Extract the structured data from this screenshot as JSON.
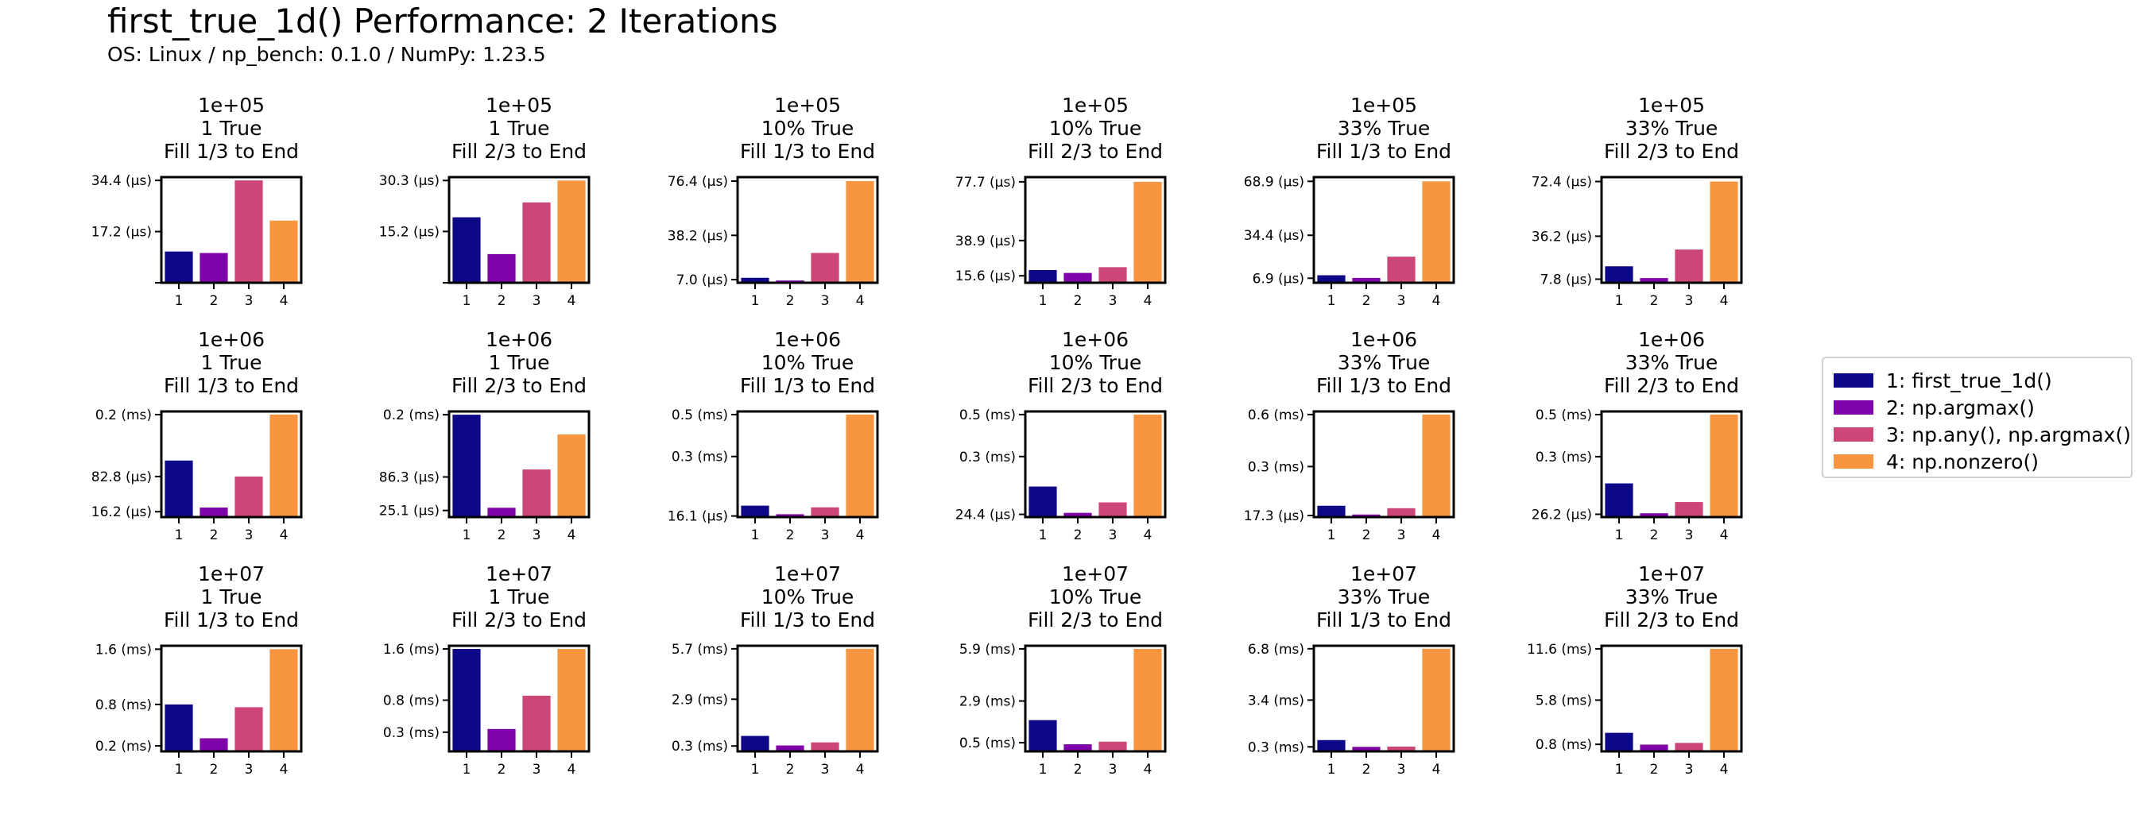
{
  "title": "first_true_1d() Performance: 2 Iterations",
  "subtitle": "OS: Linux / np_bench: 0.1.0 / NumPy: 1.23.5",
  "colors": [
    "#0d0887",
    "#7e03a8",
    "#cc4778",
    "#f89540"
  ],
  "legend": [
    {
      "label": "1: first_true_1d()"
    },
    {
      "label": "2: np.argmax()"
    },
    {
      "label": "3: np.any(), np.argmax()"
    },
    {
      "label": "4: np.nonzero()"
    }
  ],
  "chart_data": [
    {
      "type": "bar",
      "title": [
        "1e+05",
        "1 True",
        "Fill 1/3 to End"
      ],
      "categories": [
        "1",
        "2",
        "3",
        "4"
      ],
      "unit": "µs",
      "values": [
        10.5,
        10.0,
        34.4,
        20.9
      ],
      "ylim": [
        0,
        35.5
      ],
      "yticks": [
        {
          "value": 17.2,
          "label": "17.2 (µs)"
        },
        {
          "value": 34.4,
          "label": "34.4 (µs)"
        }
      ],
      "base_tick": true
    },
    {
      "type": "bar",
      "title": [
        "1e+05",
        "1 True",
        "Fill 2/3 to End"
      ],
      "categories": [
        "1",
        "2",
        "3",
        "4"
      ],
      "unit": "µs",
      "values": [
        19.4,
        8.5,
        23.8,
        30.3
      ],
      "ylim": [
        0,
        31.3
      ],
      "yticks": [
        {
          "value": 15.2,
          "label": "15.2 (µs)"
        },
        {
          "value": 30.3,
          "label": "30.3 (µs)"
        }
      ],
      "base_tick": true
    },
    {
      "type": "bar",
      "title": [
        "1e+05",
        "10% True",
        "Fill 1/3 to End"
      ],
      "categories": [
        "1",
        "2",
        "3",
        "4"
      ],
      "unit": "µs",
      "values": [
        8.3,
        6.4,
        25.8,
        76.4
      ],
      "ylim": [
        4.8,
        79.2
      ],
      "yticks": [
        {
          "value": 7.0,
          "label": "7.0 (µs)"
        },
        {
          "value": 38.2,
          "label": "38.2 (µs)"
        },
        {
          "value": 76.4,
          "label": "76.4 (µs)"
        }
      ]
    },
    {
      "type": "bar",
      "title": [
        "1e+05",
        "10% True",
        "Fill 2/3 to End"
      ],
      "categories": [
        "1",
        "2",
        "3",
        "4"
      ],
      "unit": "µs",
      "values": [
        19.4,
        17.5,
        21.3,
        77.7
      ],
      "ylim": [
        11.0,
        80.8
      ],
      "yticks": [
        {
          "value": 15.6,
          "label": "15.6 (µs)"
        },
        {
          "value": 38.9,
          "label": "38.9 (µs)"
        },
        {
          "value": 77.7,
          "label": "77.7 (µs)"
        }
      ]
    },
    {
      "type": "bar",
      "title": [
        "1e+05",
        "33% True",
        "Fill 1/3 to End"
      ],
      "categories": [
        "1",
        "2",
        "3",
        "4"
      ],
      "unit": "µs",
      "values": [
        8.8,
        7.1,
        20.7,
        68.9
      ],
      "ylim": [
        4.0,
        71.6
      ],
      "yticks": [
        {
          "value": 6.9,
          "label": "6.9 (µs)"
        },
        {
          "value": 34.4,
          "label": "34.4 (µs)"
        },
        {
          "value": 68.9,
          "label": "68.9 (µs)"
        }
      ]
    },
    {
      "type": "bar",
      "title": [
        "1e+05",
        "33% True",
        "Fill 2/3 to End"
      ],
      "categories": [
        "1",
        "2",
        "3",
        "4"
      ],
      "unit": "µs",
      "values": [
        16.3,
        8.5,
        27.4,
        72.4
      ],
      "ylim": [
        5.4,
        75.3
      ],
      "yticks": [
        {
          "value": 7.8,
          "label": "7.8 (µs)"
        },
        {
          "value": 36.2,
          "label": "36.2 (µs)"
        },
        {
          "value": 72.4,
          "label": "72.4 (µs)"
        }
      ]
    },
    {
      "type": "bar",
      "title": [
        "1e+06",
        "1 True",
        "Fill 1/3 to End"
      ],
      "categories": [
        "1",
        "2",
        "3",
        "4"
      ],
      "unit": "µs",
      "values": [
        113,
        24,
        82.8,
        200
      ],
      "ylim": [
        6,
        206
      ],
      "yticks": [
        {
          "value": 16.2,
          "label": "16.2 (µs)"
        },
        {
          "value": 82.8,
          "label": "82.8 (µs)"
        },
        {
          "value": 200,
          "label": "0.2 (ms)"
        }
      ]
    },
    {
      "type": "bar",
      "title": [
        "1e+06",
        "1 True",
        "Fill 2/3 to End"
      ],
      "categories": [
        "1",
        "2",
        "3",
        "4"
      ],
      "unit": "µs",
      "values": [
        200,
        30,
        100,
        164
      ],
      "ylim": [
        13,
        206
      ],
      "yticks": [
        {
          "value": 25.1,
          "label": "25.1 (µs)"
        },
        {
          "value": 86.3,
          "label": "86.3 (µs)"
        },
        {
          "value": 200,
          "label": "0.2 (ms)"
        }
      ]
    },
    {
      "type": "bar",
      "title": [
        "1e+06",
        "10% True",
        "Fill 1/3 to End"
      ],
      "categories": [
        "1",
        "2",
        "3",
        "4"
      ],
      "unit": "ms",
      "values": [
        0.0654,
        0.0245,
        0.0573,
        0.5
      ],
      "ylim": [
        0.0109,
        0.515
      ],
      "yticks": [
        {
          "value": 0.0161,
          "label": "16.1 (µs)"
        },
        {
          "value": 0.3,
          "label": "0.3 (ms)"
        },
        {
          "value": 0.5,
          "label": "0.5 (ms)"
        }
      ]
    },
    {
      "type": "bar",
      "title": [
        "1e+06",
        "10% True",
        "Fill 2/3 to End"
      ],
      "categories": [
        "1",
        "2",
        "3",
        "4"
      ],
      "unit": "ms",
      "values": [
        0.157,
        0.0317,
        0.0815,
        0.5
      ],
      "ylim": [
        0.0115,
        0.515
      ],
      "yticks": [
        {
          "value": 0.0244,
          "label": "24.4 (µs)"
        },
        {
          "value": 0.3,
          "label": "0.3 (ms)"
        },
        {
          "value": 0.5,
          "label": "0.5 (ms)"
        }
      ]
    },
    {
      "type": "bar",
      "title": [
        "1e+06",
        "33% True",
        "Fill 1/3 to End"
      ],
      "categories": [
        "1",
        "2",
        "3",
        "4"
      ],
      "unit": "ms",
      "values": [
        0.0736,
        0.0231,
        0.0595,
        0.6
      ],
      "ylim": [
        0.00827,
        0.618
      ],
      "yticks": [
        {
          "value": 0.0173,
          "label": "17.3 (µs)"
        },
        {
          "value": 0.3,
          "label": "0.3 (ms)"
        },
        {
          "value": 0.6,
          "label": "0.6 (ms)"
        }
      ]
    },
    {
      "type": "bar",
      "title": [
        "1e+06",
        "33% True",
        "Fill 2/3 to End"
      ],
      "categories": [
        "1",
        "2",
        "3",
        "4"
      ],
      "unit": "ms",
      "values": [
        0.173,
        0.031,
        0.0843,
        0.5
      ],
      "ylim": [
        0.0128,
        0.515
      ],
      "yticks": [
        {
          "value": 0.0262,
          "label": "26.2 (µs)"
        },
        {
          "value": 0.3,
          "label": "0.3 (ms)"
        },
        {
          "value": 0.5,
          "label": "0.5 (ms)"
        }
      ]
    },
    {
      "type": "bar",
      "title": [
        "1e+07",
        "1 True",
        "Fill 1/3 to End"
      ],
      "categories": [
        "1",
        "2",
        "3",
        "4"
      ],
      "unit": "ms",
      "values": [
        0.8,
        0.31,
        0.76,
        1.6
      ],
      "ylim": [
        0.12,
        1.65
      ],
      "yticks": [
        {
          "value": 0.2,
          "label": "0.2 (ms)"
        },
        {
          "value": 0.8,
          "label": "0.8 (ms)"
        },
        {
          "value": 1.6,
          "label": "1.6 (ms)"
        }
      ]
    },
    {
      "type": "bar",
      "title": [
        "1e+07",
        "1 True",
        "Fill 2/3 to End"
      ],
      "categories": [
        "1",
        "2",
        "3",
        "4"
      ],
      "unit": "ms",
      "values": [
        1.6,
        0.35,
        0.87,
        1.6
      ],
      "ylim": [
        0.0,
        1.65
      ],
      "yticks": [
        {
          "value": 0.3,
          "label": "0.3 (ms)"
        },
        {
          "value": 0.8,
          "label": "0.8 (ms)"
        },
        {
          "value": 1.6,
          "label": "1.6 (ms)"
        }
      ]
    },
    {
      "type": "bar",
      "title": [
        "1e+07",
        "10% True",
        "Fill 1/3 to End"
      ],
      "categories": [
        "1",
        "2",
        "3",
        "4"
      ],
      "unit": "ms",
      "values": [
        0.86,
        0.33,
        0.5,
        5.7
      ],
      "ylim": [
        0.0,
        5.87
      ],
      "yticks": [
        {
          "value": 0.3,
          "label": "0.3 (ms)"
        },
        {
          "value": 2.9,
          "label": "2.9 (ms)"
        },
        {
          "value": 5.7,
          "label": "5.7 (ms)"
        }
      ]
    },
    {
      "type": "bar",
      "title": [
        "1e+07",
        "10% True",
        "Fill 2/3 to End"
      ],
      "categories": [
        "1",
        "2",
        "3",
        "4"
      ],
      "unit": "ms",
      "values": [
        1.8,
        0.41,
        0.56,
        5.9
      ],
      "ylim": [
        0.0,
        6.08
      ],
      "yticks": [
        {
          "value": 0.5,
          "label": "0.5 (ms)"
        },
        {
          "value": 2.9,
          "label": "2.9 (ms)"
        },
        {
          "value": 5.9,
          "label": "5.9 (ms)"
        }
      ]
    },
    {
      "type": "bar",
      "title": [
        "1e+07",
        "33% True",
        "Fill 1/3 to End"
      ],
      "categories": [
        "1",
        "2",
        "3",
        "4"
      ],
      "unit": "ms",
      "values": [
        0.75,
        0.3,
        0.32,
        6.8
      ],
      "ylim": [
        0.0,
        7.0
      ],
      "yticks": [
        {
          "value": 0.3,
          "label": "0.3 (ms)"
        },
        {
          "value": 3.4,
          "label": "3.4 (ms)"
        },
        {
          "value": 6.8,
          "label": "6.8 (ms)"
        }
      ]
    },
    {
      "type": "bar",
      "title": [
        "1e+07",
        "33% True",
        "Fill 2/3 to End"
      ],
      "categories": [
        "1",
        "2",
        "3",
        "4"
      ],
      "unit": "ms",
      "values": [
        2.1,
        0.77,
        0.96,
        11.6
      ],
      "ylim": [
        0.0,
        11.95
      ],
      "yticks": [
        {
          "value": 0.8,
          "label": "0.8 (ms)"
        },
        {
          "value": 5.8,
          "label": "5.8 (ms)"
        },
        {
          "value": 11.6,
          "label": "11.6 (ms)"
        }
      ]
    }
  ]
}
